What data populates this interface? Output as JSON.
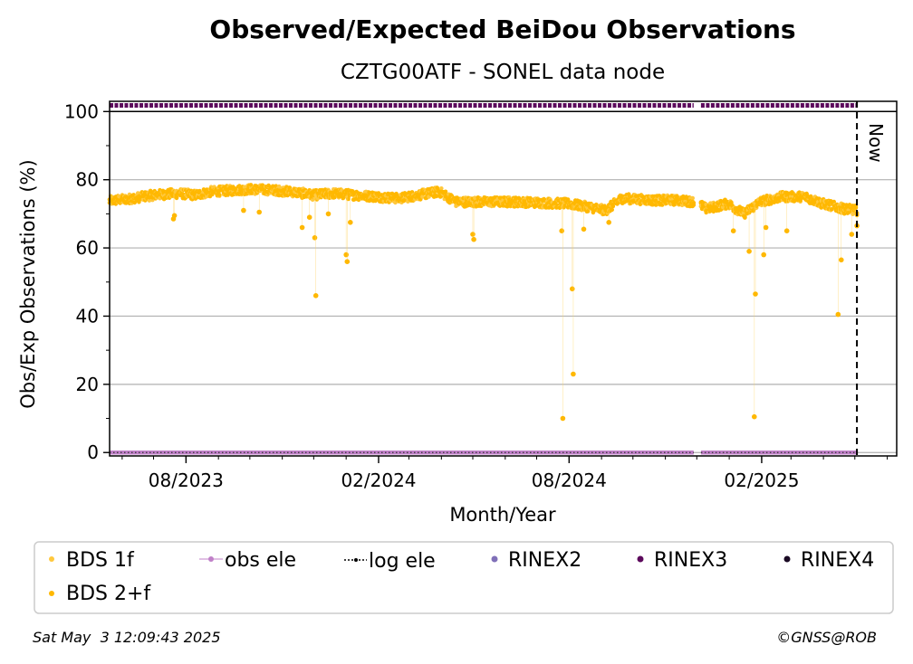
{
  "chart_data": {
    "type": "scatter",
    "title": "Observed/Expected BeiDou Observations",
    "subtitle": "CZTG00ATF - SONEL data node",
    "xlabel": "Month/Year",
    "ylabel": "Obs/Exp Observations (%)",
    "x_range": [
      "2023-05-20",
      "2025-06-10"
    ],
    "ylim": [
      -1,
      103
    ],
    "yticks": [
      0,
      20,
      40,
      60,
      80,
      100
    ],
    "xticks": [
      {
        "date": "2023-08-01",
        "label": "08/2023"
      },
      {
        "date": "2024-02-01",
        "label": "02/2024"
      },
      {
        "date": "2024-08-01",
        "label": "08/2024"
      },
      {
        "date": "2025-02-01",
        "label": "02/2025"
      }
    ],
    "grid": "horizontal",
    "now_label": "Now",
    "now_date": "2025-05-03",
    "colors": {
      "bds1f": "#ffc83d",
      "bds2f": "#ffb800",
      "obs_ele": "#c080c8",
      "log_ele": "#000000",
      "rinex2": "#8070b8",
      "rinex3": "#5c0a5c",
      "rinex4": "#1a0a24"
    },
    "series": [
      {
        "name": "BDS 2+f",
        "baseline": [
          [
            "2023-05-20",
            73.8
          ],
          [
            "2023-06-10",
            74.5
          ],
          [
            "2023-07-01",
            75.5
          ],
          [
            "2023-07-25",
            76.0
          ],
          [
            "2023-08-10",
            75.5
          ],
          [
            "2023-08-25",
            76.5
          ],
          [
            "2023-09-10",
            76.8
          ],
          [
            "2023-10-01",
            77.2
          ],
          [
            "2023-10-20",
            77.0
          ],
          [
            "2023-11-10",
            76.5
          ],
          [
            "2023-12-01",
            75.5
          ],
          [
            "2023-12-20",
            76.0
          ],
          [
            "2024-01-10",
            75.5
          ],
          [
            "2024-02-01",
            75.0
          ],
          [
            "2024-02-20",
            74.5
          ],
          [
            "2024-03-10",
            75.5
          ],
          [
            "2024-03-30",
            76.5
          ],
          [
            "2024-04-15",
            73.5
          ],
          [
            "2024-05-10",
            73.5
          ],
          [
            "2024-06-10",
            73.5
          ],
          [
            "2024-07-10",
            73.2
          ],
          [
            "2024-07-30",
            73.0
          ],
          [
            "2024-08-20",
            72.0
          ],
          [
            "2024-09-05",
            71.0
          ],
          [
            "2024-09-20",
            74.5
          ],
          [
            "2024-10-20",
            74.0
          ],
          [
            "2024-11-10",
            74.0
          ],
          [
            "2024-11-30",
            73.5
          ],
          [
            "2024-12-10",
            71.5
          ],
          [
            "2024-12-31",
            73.0
          ],
          [
            "2025-01-15",
            70.0
          ],
          [
            "2025-01-30",
            73.5
          ],
          [
            "2025-02-20",
            75.0
          ],
          [
            "2025-03-15",
            75.0
          ],
          [
            "2025-03-31",
            73.0
          ],
          [
            "2025-04-20",
            71.5
          ],
          [
            "2025-05-03",
            71.0
          ]
        ],
        "outliers": [
          [
            "2023-07-20",
            68.5
          ],
          [
            "2023-07-21",
            69.5
          ],
          [
            "2023-09-25",
            71.0
          ],
          [
            "2023-10-10",
            70.5
          ],
          [
            "2023-11-20",
            66.0
          ],
          [
            "2023-11-27",
            69.0
          ],
          [
            "2023-12-02",
            63.0
          ],
          [
            "2023-12-03",
            46.0
          ],
          [
            "2023-12-15",
            70.0
          ],
          [
            "2024-01-01",
            58.0
          ],
          [
            "2024-01-02",
            56.0
          ],
          [
            "2024-01-05",
            67.5
          ],
          [
            "2024-05-01",
            64.0
          ],
          [
            "2024-05-02",
            62.5
          ],
          [
            "2024-07-25",
            65.0
          ],
          [
            "2024-07-26",
            10.0
          ],
          [
            "2024-08-04",
            48.0
          ],
          [
            "2024-08-05",
            23.0
          ],
          [
            "2024-08-15",
            65.5
          ],
          [
            "2024-09-08",
            67.5
          ],
          [
            "2025-01-05",
            65.0
          ],
          [
            "2025-01-20",
            59.0
          ],
          [
            "2025-01-25",
            10.5
          ],
          [
            "2025-01-26",
            46.5
          ],
          [
            "2025-02-03",
            58.0
          ],
          [
            "2025-02-05",
            66.0
          ],
          [
            "2025-02-25",
            65.0
          ],
          [
            "2025-04-15",
            40.5
          ],
          [
            "2025-04-18",
            56.5
          ],
          [
            "2025-04-28",
            64.0
          ],
          [
            "2025-05-03",
            66.5
          ]
        ]
      },
      {
        "name": "BDS 1f",
        "values": []
      },
      {
        "name": "obs ele",
        "values": []
      },
      {
        "name": "log ele",
        "values": []
      },
      {
        "name": "RINEX2",
        "values": []
      },
      {
        "name": "RINEX3",
        "values": [],
        "coverage": [
          [
            "2023-05-20",
            "2024-11-28"
          ],
          [
            "2024-12-05",
            "2025-05-03"
          ]
        ]
      },
      {
        "name": "RINEX4",
        "values": []
      }
    ],
    "legend_placement": "bottom"
  },
  "legend": {
    "items": [
      {
        "label": "BDS 1f",
        "icon": "dot-icon",
        "color": "#ffc83d"
      },
      {
        "label": "obs ele",
        "icon": "line-dot-icon",
        "color": "#c080c8"
      },
      {
        "label": "log ele",
        "icon": "dotted-line-icon",
        "color": "#000000"
      },
      {
        "label": "RINEX2",
        "icon": "dot-icon",
        "color": "#8070b8"
      },
      {
        "label": "RINEX3",
        "icon": "dot-icon",
        "color": "#5c0a5c"
      },
      {
        "label": "RINEX4",
        "icon": "dot-icon",
        "color": "#1a0a24"
      },
      {
        "label": "BDS 2+f",
        "icon": "dot-icon",
        "color": "#ffb800"
      }
    ]
  },
  "footer": {
    "timestamp": "Sat May  3 12:09:43 2025",
    "credit": "©GNSS@ROB"
  }
}
